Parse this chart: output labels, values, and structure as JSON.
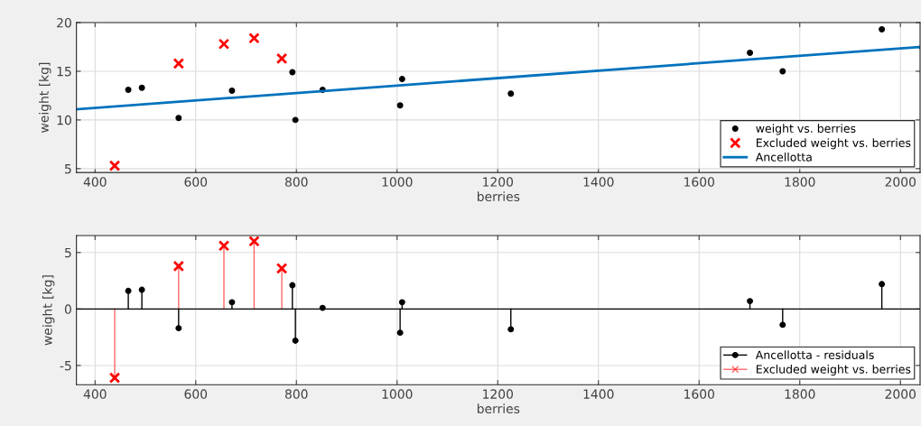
{
  "chart_data": [
    {
      "type": "scatter",
      "xlabel": "berries",
      "ylabel": "weight [kg]",
      "xlim": [
        363,
        2039
      ],
      "xticks": [
        400,
        600,
        800,
        1000,
        1200,
        1400,
        1600,
        1800,
        2000
      ],
      "ylim": [
        4.6,
        20
      ],
      "yticks": [
        5,
        10,
        15,
        20
      ],
      "grid": true,
      "legend": "bottom right",
      "series": [
        {
          "name": "weight vs. berries",
          "marker": "circle",
          "color": "#000000",
          "x": [
            466,
            493,
            566,
            672,
            792,
            798,
            852,
            1006,
            1010,
            1226,
            1701,
            1766,
            1963
          ],
          "values": [
            13.1,
            13.3,
            10.2,
            13.0,
            14.9,
            10.0,
            13.1,
            11.5,
            14.2,
            12.7,
            16.9,
            15.0,
            19.3
          ]
        },
        {
          "name": "Excluded weight vs. berries",
          "marker": "cross",
          "color": "#ff0000",
          "x": [
            439,
            566,
            656,
            716,
            771
          ],
          "values": [
            5.3,
            15.8,
            17.8,
            18.4,
            16.3
          ]
        },
        {
          "name": "Ancellotta",
          "type": "line",
          "marker": "none",
          "color": "#0072bd",
          "x": [
            363,
            2039
          ],
          "values": [
            11.1,
            17.5
          ]
        }
      ]
    },
    {
      "type": "lollipop",
      "xlabel": "berries",
      "ylabel": "weight [kg]",
      "xlim": [
        363,
        2039
      ],
      "xticks": [
        400,
        600,
        800,
        1000,
        1200,
        1400,
        1600,
        1800,
        2000
      ],
      "ylim": [
        -6.7,
        6.5
      ],
      "yticks": [
        -5,
        0,
        5
      ],
      "grid": true,
      "legend": "bottom right",
      "ref_lines": [
        {
          "axis": "y",
          "value": 0,
          "color": "#000000"
        }
      ],
      "series": [
        {
          "name": "Ancellotta - residuals",
          "marker": "circle",
          "color": "#000000",
          "x": [
            466,
            493,
            566,
            672,
            792,
            798,
            852,
            1006,
            1010,
            1226,
            1701,
            1766,
            1963
          ],
          "values": [
            1.6,
            1.7,
            -1.7,
            0.6,
            2.1,
            -2.8,
            0.1,
            -2.1,
            0.6,
            -1.8,
            0.7,
            -1.4,
            2.2
          ]
        },
        {
          "name": "Excluded weight vs. berries",
          "marker": "cross",
          "color": "#ff0000",
          "x": [
            439,
            566,
            656,
            716,
            771
          ],
          "values": [
            -6.1,
            3.8,
            5.6,
            6.0,
            3.6
          ]
        }
      ]
    }
  ]
}
